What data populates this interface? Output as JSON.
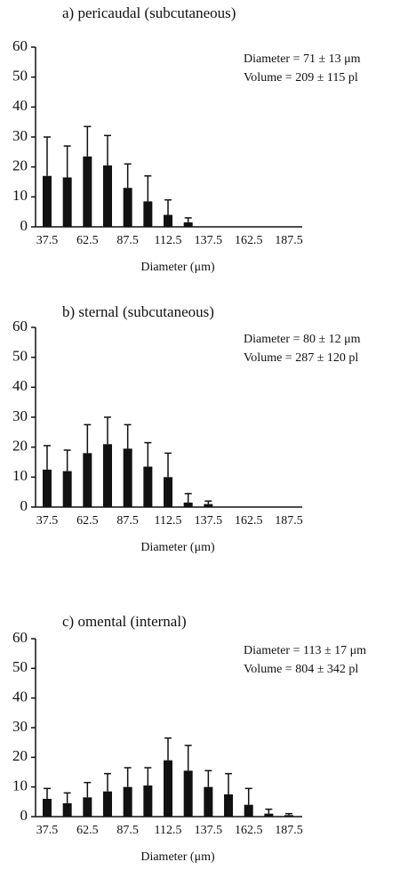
{
  "chart_data": [
    {
      "type": "bar",
      "title": "a) pericaudal (subcutaneous)",
      "annotations": [
        "Diameter = 71 ± 13 μm",
        "Volume = 209 ± 115 pl"
      ],
      "xlabel": "Diameter (μm)",
      "categories": [
        "37.5",
        null,
        "62.5",
        null,
        "87.5",
        null,
        "112.5",
        null,
        "137.5",
        null,
        "162.5",
        null,
        "187.5"
      ],
      "values": [
        17,
        16.5,
        23.5,
        20.5,
        13,
        8.5,
        4,
        1.5,
        0,
        0,
        0,
        0,
        0
      ],
      "errors": [
        13,
        10.5,
        10,
        10,
        8,
        8.5,
        5,
        1.5,
        0,
        0,
        0,
        0,
        0
      ],
      "color": "#111111",
      "ylim": [
        0,
        60
      ],
      "yticks": [
        0,
        10,
        20,
        30,
        40,
        50,
        60
      ]
    },
    {
      "type": "bar",
      "title": "b) sternal (subcutaneous)",
      "annotations": [
        "Diameter = 80 ± 12 μm",
        "Volume = 287 ±  120 pl"
      ],
      "xlabel": "Diameter (μm)",
      "categories": [
        "37.5",
        null,
        "62.5",
        null,
        "87.5",
        null,
        "112.5",
        null,
        "137.5",
        null,
        "162.5",
        null,
        "187.5"
      ],
      "values": [
        12.5,
        12,
        18,
        21,
        19.5,
        13.5,
        10,
        1.5,
        1,
        0,
        0,
        0,
        0
      ],
      "errors": [
        8,
        7,
        9.5,
        9,
        8,
        8,
        8,
        3,
        1,
        0,
        0,
        0,
        0
      ],
      "color": "#111111",
      "ylim": [
        0,
        60
      ],
      "yticks": [
        0,
        10,
        20,
        30,
        40,
        50,
        60
      ]
    },
    {
      "type": "bar",
      "title": "c) omental (internal)",
      "annotations": [
        "Diameter = 113 ± 17 μm",
        "Volume = 804 ±  342 pl"
      ],
      "xlabel": "Diameter (μm)",
      "categories": [
        "37.5",
        null,
        "62.5",
        null,
        "87.5",
        null,
        "112.5",
        null,
        "137.5",
        null,
        "162.5",
        null,
        "187.5"
      ],
      "values": [
        6,
        4.5,
        6.5,
        8.5,
        10,
        10.5,
        19,
        15.5,
        10,
        7.5,
        4,
        1,
        0.5
      ],
      "errors": [
        3.5,
        3.5,
        5,
        6,
        6.5,
        6,
        7.5,
        8.5,
        5.5,
        7,
        5.5,
        1.5,
        0.5
      ],
      "color": "#111111",
      "ylim": [
        0,
        60
      ],
      "yticks": [
        0,
        10,
        20,
        30,
        40,
        50,
        60
      ]
    }
  ]
}
